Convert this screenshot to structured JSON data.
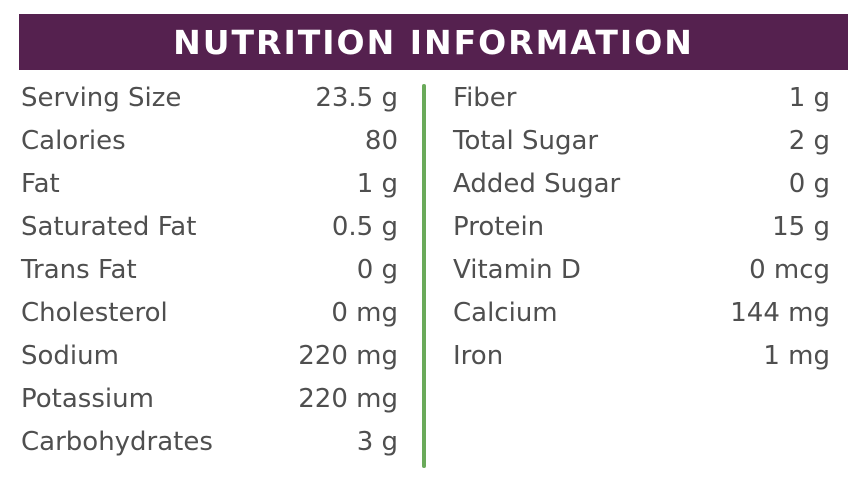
{
  "header": {
    "title": "NUTRITION INFORMATION"
  },
  "colors": {
    "header_background": "#55214f",
    "header_text": "#ffffff",
    "body_text": "#4f4f4f",
    "divider": "#6aaa5a"
  },
  "left_column": [
    {
      "label": "Serving Size",
      "value": "23.5 g"
    },
    {
      "label": "Calories",
      "value": "80"
    },
    {
      "label": "Fat",
      "value": "1 g"
    },
    {
      "label": "Saturated Fat",
      "value": "0.5 g"
    },
    {
      "label": "Trans Fat",
      "value": "0 g"
    },
    {
      "label": "Cholesterol",
      "value": "0 mg"
    },
    {
      "label": "Sodium",
      "value": "220 mg"
    },
    {
      "label": "Potassium",
      "value": "220 mg"
    },
    {
      "label": "Carbohydrates",
      "value": "3 g"
    }
  ],
  "right_column": [
    {
      "label": "Fiber",
      "value": "1 g"
    },
    {
      "label": "Total Sugar",
      "value": "2 g"
    },
    {
      "label": "Added Sugar",
      "value": "0 g"
    },
    {
      "label": "Protein",
      "value": "15 g"
    },
    {
      "label": "Vitamin D",
      "value": "0 mcg"
    },
    {
      "label": "Calcium",
      "value": "144 mg"
    },
    {
      "label": "Iron",
      "value": "1 mg"
    }
  ]
}
